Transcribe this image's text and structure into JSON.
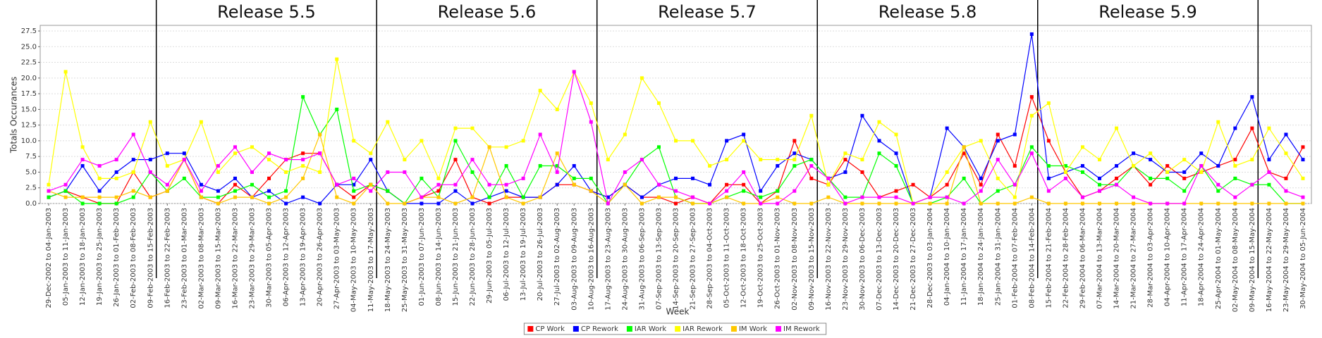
{
  "chart_data": {
    "type": "line",
    "releases": [
      "Release 5.5",
      "Release 5.6",
      "Release 5.7",
      "Release 5.8",
      "Release 5.9"
    ],
    "xlabel": "Week",
    "ylabel": "Totals Occurances",
    "ylim": [
      0,
      28.4
    ],
    "yticks": [
      {
        "value": 0,
        "label": "0.0"
      },
      {
        "value": 2.5,
        "label": "2.5"
      },
      {
        "value": 5,
        "label": "5.0"
      },
      {
        "value": 7.5,
        "label": "7.5"
      },
      {
        "value": 10,
        "label": "10.0"
      },
      {
        "value": 12.5,
        "label": "12.5"
      },
      {
        "value": 15,
        "label": "15.0"
      },
      {
        "value": 17.5,
        "label": "17.5"
      },
      {
        "value": 20,
        "label": "20.0"
      },
      {
        "value": 22.5,
        "label": "22.5"
      },
      {
        "value": 25,
        "label": "25.0"
      },
      {
        "value": 27.5,
        "label": "27.5"
      }
    ],
    "grid": true,
    "legend": "bottom",
    "categories": [
      "29-Dec-2002 to 04-Jan-2003",
      "05-Jan-2003 to 11-Jan-2003",
      "12-Jan-2003 to 18-Jan-2003",
      "19-Jan-2003 to 25-Jan-2003",
      "26-Jan-2003 to 01-Feb-2003",
      "02-Feb-2003 to 08-Feb-2003",
      "09-Feb-2003 to 15-Feb-2003",
      "16-Feb-2003 to 22-Feb-2003",
      "23-Feb-2003 to 01-Mar-2003",
      "02-Mar-2003 to 08-Mar-2003",
      "09-Mar-2003 to 15-Mar-2003",
      "16-Mar-2003 to 22-Mar-2003",
      "23-Mar-2003 to 29-Mar-2003",
      "30-Mar-2003 to 05-Apr-2003",
      "06-Apr-2003 to 12-Apr-2003",
      "13-Apr-2003 to 19-Apr-2003",
      "20-Apr-2003 to 26-Apr-2003",
      "27-Apr-2003 to 03-May-2003",
      "04-May-2003 to 10-May-2003",
      "11-May-2003 to 17-May-2003",
      "18-May-2003 to 24-May-2003",
      "25-May-2003 to 31-May-2003",
      "01-Jun-2003 to 07-Jun-2003",
      "08-Jun-2003 to 14-Jun-2003",
      "15-Jun-2003 to 21-Jun-2003",
      "22-Jun-2003 to 28-Jun-2003",
      "29-Jun-2003 to 05-Jul-2003",
      "06-Jul-2003 to 12-Jul-2003",
      "13-Jul-2003 to 19-Jul-2003",
      "20-Jul-2003 to 26-Jul-2003",
      "27-Jul-2003 to 02-Aug-2003",
      "03-Aug-2003 to 09-Aug-2003",
      "10-Aug-2003 to 16-Aug-2003",
      "17-Aug-2003 to 23-Aug-2003",
      "24-Aug-2003 to 30-Aug-2003",
      "31-Aug-2003 to 06-Sep-2003",
      "07-Sep-2003 to 13-Sep-2003",
      "14-Sep-2003 to 20-Sep-2003",
      "21-Sep-2003 to 27-Sep-2003",
      "28-Sep-2003 to 04-Oct-2003",
      "05-Oct-2003 to 11-Oct-2003",
      "12-Oct-2003 to 18-Oct-2003",
      "19-Oct-2003 to 25-Oct-2003",
      "26-Oct-2003 to 01-Nov-2003",
      "02-Nov-2003 to 08-Nov-2003",
      "09-Nov-2003 to 15-Nov-2003",
      "16-Nov-2003 to 22-Nov-2003",
      "23-Nov-2003 to 29-Nov-2003",
      "30-Nov-2003 to 06-Dec-2003",
      "07-Dec-2003 to 13-Dec-2003",
      "14-Dec-2003 to 20-Dec-2003",
      "21-Dec-2003 to 27-Dec-2003",
      "28-Dec-2003 to 03-Jan-2004",
      "04-Jan-2004 to 10-Jan-2004",
      "11-Jan-2004 to 17-Jan-2004",
      "18-Jan-2004 to 24-Jan-2004",
      "25-Jan-2004 to 31-Jan-2004",
      "01-Feb-2004 to 07-Feb-2004",
      "08-Feb-2004 to 14-Feb-2004",
      "15-Feb-2004 to 21-Feb-2004",
      "22-Feb-2004 to 28-Feb-2004",
      "29-Feb-2004 to 06-Mar-2004",
      "07-Mar-2004 to 13-Mar-2004",
      "14-Mar-2004 to 20-Mar-2004",
      "21-Mar-2004 to 27-Mar-2004",
      "28-Mar-2004 to 03-Apr-2004",
      "04-Apr-2004 to 10-Apr-2004",
      "11-Apr-2004 to 17-Apr-2004",
      "18-Apr-2004 to 24-Apr-2004",
      "25-Apr-2004 to 01-May-2004",
      "02-May-2004 to 08-May-2004",
      "09-May-2004 to 15-May-2004",
      "16-May-2004 to 22-May-2004",
      "23-May-2004 to 29-May-2004",
      "30-May-2004 to 05-Jun-2004"
    ],
    "series": [
      {
        "name": "CP Work",
        "color": "#ff0000",
        "values": [
          1,
          2,
          1,
          0,
          0,
          5,
          1,
          2,
          7,
          1,
          0,
          3,
          1,
          4,
          7,
          8,
          8,
          3,
          1,
          3,
          2,
          0,
          1,
          2,
          7,
          1,
          0,
          1,
          1,
          1,
          3,
          3,
          2,
          1,
          3,
          1,
          1,
          0,
          1,
          0,
          3,
          3,
          0,
          2,
          10,
          4,
          3,
          7,
          5,
          1,
          2,
          3,
          1,
          3,
          8,
          3,
          11,
          6,
          17,
          10,
          5,
          1,
          2,
          4,
          6,
          3,
          6,
          4,
          5,
          6,
          7,
          12,
          5,
          4,
          9
        ]
      },
      {
        "name": "CP Rework",
        "color": "#0000ff",
        "values": [
          1,
          2,
          6,
          2,
          5,
          7,
          7,
          8,
          8,
          3,
          2,
          4,
          1,
          2,
          0,
          1,
          0,
          3,
          3,
          7,
          2,
          0,
          0,
          0,
          2,
          0,
          1,
          2,
          1,
          1,
          3,
          6,
          2,
          1,
          3,
          1,
          3,
          4,
          4,
          3,
          10,
          11,
          2,
          6,
          8,
          7,
          4,
          5,
          14,
          10,
          8,
          0,
          1,
          12,
          9,
          4,
          10,
          11,
          27,
          4,
          5,
          6,
          4,
          6,
          8,
          7,
          5,
          5,
          8,
          6,
          12,
          17,
          7,
          11,
          7
        ]
      },
      {
        "name": "IAR Work",
        "color": "#00ff00",
        "values": [
          1,
          2,
          0,
          0,
          0,
          1,
          5,
          2,
          4,
          1,
          1,
          2,
          3,
          1,
          2,
          17,
          11,
          15,
          2,
          3,
          2,
          0,
          4,
          1,
          10,
          5,
          1,
          6,
          1,
          6,
          6,
          4,
          4,
          0,
          3,
          7,
          9,
          1,
          0,
          0,
          1,
          2,
          1,
          2,
          6,
          7,
          4,
          1,
          1,
          8,
          6,
          0,
          0,
          1,
          4,
          0,
          2,
          3,
          9,
          6,
          6,
          5,
          3,
          3,
          6,
          4,
          4,
          2,
          6,
          2,
          4,
          3,
          3,
          0,
          0
        ]
      },
      {
        "name": "IAR Rework",
        "color": "#ffff00",
        "values": [
          3,
          21,
          9,
          4,
          4,
          5,
          13,
          6,
          7,
          13,
          5,
          8,
          9,
          7,
          5,
          6,
          5,
          23,
          10,
          8,
          13,
          7,
          10,
          4,
          12,
          12,
          9,
          9,
          10,
          18,
          15,
          21,
          16,
          7,
          11,
          20,
          16,
          10,
          10,
          6,
          7,
          10,
          7,
          7,
          7,
          14,
          3,
          8,
          7,
          13,
          11,
          0,
          1,
          5,
          9,
          10,
          4,
          1,
          14,
          16,
          5,
          9,
          7,
          12,
          6,
          8,
          5,
          7,
          5,
          13,
          6,
          7,
          12,
          8,
          4
        ]
      },
      {
        "name": "IM Work",
        "color": "#ffc800",
        "values": [
          2,
          1,
          1,
          1,
          1,
          2,
          1,
          2,
          7,
          1,
          0,
          1,
          1,
          0,
          1,
          4,
          11,
          1,
          0,
          3,
          0,
          0,
          1,
          1,
          0,
          1,
          9,
          1,
          0,
          1,
          8,
          3,
          2,
          0,
          3,
          0,
          1,
          1,
          0,
          0,
          1,
          0,
          0,
          1,
          0,
          0,
          1,
          0,
          0,
          0,
          0,
          0,
          0,
          0,
          9,
          0,
          0,
          0,
          1,
          0,
          0,
          0,
          0,
          0,
          0,
          0,
          0,
          0,
          0,
          0,
          0,
          0,
          0,
          0,
          0
        ]
      },
      {
        "name": "IM Rework",
        "color": "#ff00ff",
        "values": [
          2,
          3,
          7,
          6,
          7,
          11,
          5,
          3,
          7,
          2,
          6,
          9,
          5,
          8,
          7,
          7,
          8,
          3,
          4,
          2,
          5,
          5,
          1,
          3,
          3,
          7,
          3,
          3,
          4,
          11,
          5,
          21,
          13,
          0,
          5,
          7,
          3,
          2,
          1,
          0,
          2,
          5,
          0,
          0,
          2,
          6,
          4,
          0,
          1,
          1,
          1,
          0,
          1,
          1,
          0,
          2,
          7,
          3,
          8,
          2,
          4,
          1,
          2,
          3,
          1,
          0,
          0,
          0,
          6,
          3,
          1,
          3,
          5,
          2,
          1
        ]
      }
    ]
  }
}
